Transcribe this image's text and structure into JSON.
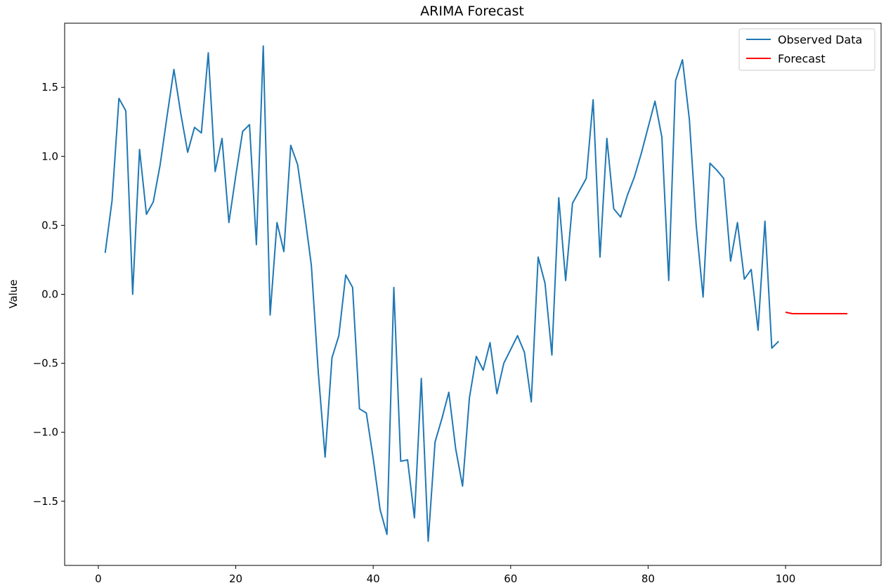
{
  "chart_data": {
    "type": "line",
    "title": "ARIMA Forecast",
    "xlabel": "",
    "ylabel": "Value",
    "xlim": [
      -4.9,
      113.9
    ],
    "ylim": [
      -1.965,
      1.965
    ],
    "xticks": [
      0,
      20,
      40,
      60,
      80,
      100
    ],
    "yticks": [
      -1.5,
      -1.0,
      -0.5,
      0.0,
      0.5,
      1.0,
      1.5
    ],
    "xtick_labels": [
      "0",
      "20",
      "40",
      "60",
      "80",
      "100"
    ],
    "ytick_labels": [
      "−1.5",
      "−1.0",
      "−0.5",
      "0.0",
      "0.5",
      "1.0",
      "1.5"
    ],
    "grid": false,
    "legend_position": "top-right",
    "series": [
      {
        "name": "Observed Data",
        "color": "#1f77b4",
        "x": [
          1,
          2,
          3,
          4,
          5,
          6,
          7,
          8,
          9,
          10,
          11,
          12,
          13,
          14,
          15,
          16,
          17,
          18,
          19,
          20,
          21,
          22,
          23,
          24,
          25,
          26,
          27,
          28,
          29,
          30,
          31,
          32,
          33,
          34,
          35,
          36,
          37,
          38,
          39,
          40,
          41,
          42,
          43,
          44,
          45,
          46,
          47,
          48,
          49,
          50,
          51,
          52,
          53,
          54,
          55,
          56,
          57,
          58,
          59,
          60,
          61,
          62,
          63,
          64,
          65,
          66,
          67,
          68,
          69,
          70,
          71,
          72,
          73,
          74,
          75,
          76,
          77,
          78,
          79,
          80,
          81,
          82,
          83,
          84,
          85,
          86,
          87,
          88,
          89,
          90,
          91,
          92,
          93,
          94,
          95,
          96,
          97,
          98,
          99
        ],
        "y": [
          0.3,
          0.68,
          1.42,
          1.33,
          0.0,
          1.05,
          0.58,
          0.67,
          0.94,
          1.29,
          1.63,
          1.31,
          1.03,
          1.21,
          1.17,
          1.75,
          0.89,
          1.13,
          0.52,
          0.86,
          1.18,
          1.23,
          0.36,
          1.8,
          -0.15,
          0.52,
          0.31,
          1.08,
          0.94,
          0.59,
          0.21,
          -0.56,
          -1.18,
          -0.46,
          -0.3,
          0.14,
          0.05,
          -0.83,
          -0.86,
          -1.19,
          -1.56,
          -1.74,
          0.05,
          -1.21,
          -1.2,
          -1.62,
          -0.61,
          -1.79,
          -1.07,
          -0.9,
          -0.71,
          -1.12,
          -1.39,
          -0.75,
          -0.45,
          -0.55,
          -0.35,
          -0.72,
          -0.5,
          -0.4,
          -0.3,
          -0.42,
          -0.78,
          0.27,
          0.08,
          -0.44,
          0.7,
          0.1,
          0.66,
          0.75,
          0.84,
          1.41,
          0.27,
          1.13,
          0.62,
          0.56,
          0.72,
          0.85,
          1.02,
          1.21,
          1.4,
          1.14,
          0.1,
          1.55,
          1.7,
          1.27,
          0.5,
          -0.02,
          0.95,
          0.9,
          0.84,
          0.24,
          0.52,
          0.11,
          0.18,
          -0.26,
          0.53,
          -0.39,
          -0.34
        ]
      },
      {
        "name": "Forecast",
        "color": "#ff0000",
        "x": [
          100,
          101,
          102,
          103,
          104,
          105,
          106,
          107,
          108,
          109
        ],
        "y": [
          -0.13,
          -0.14,
          -0.14,
          -0.14,
          -0.14,
          -0.14,
          -0.14,
          -0.14,
          -0.14,
          -0.14
        ]
      }
    ]
  }
}
